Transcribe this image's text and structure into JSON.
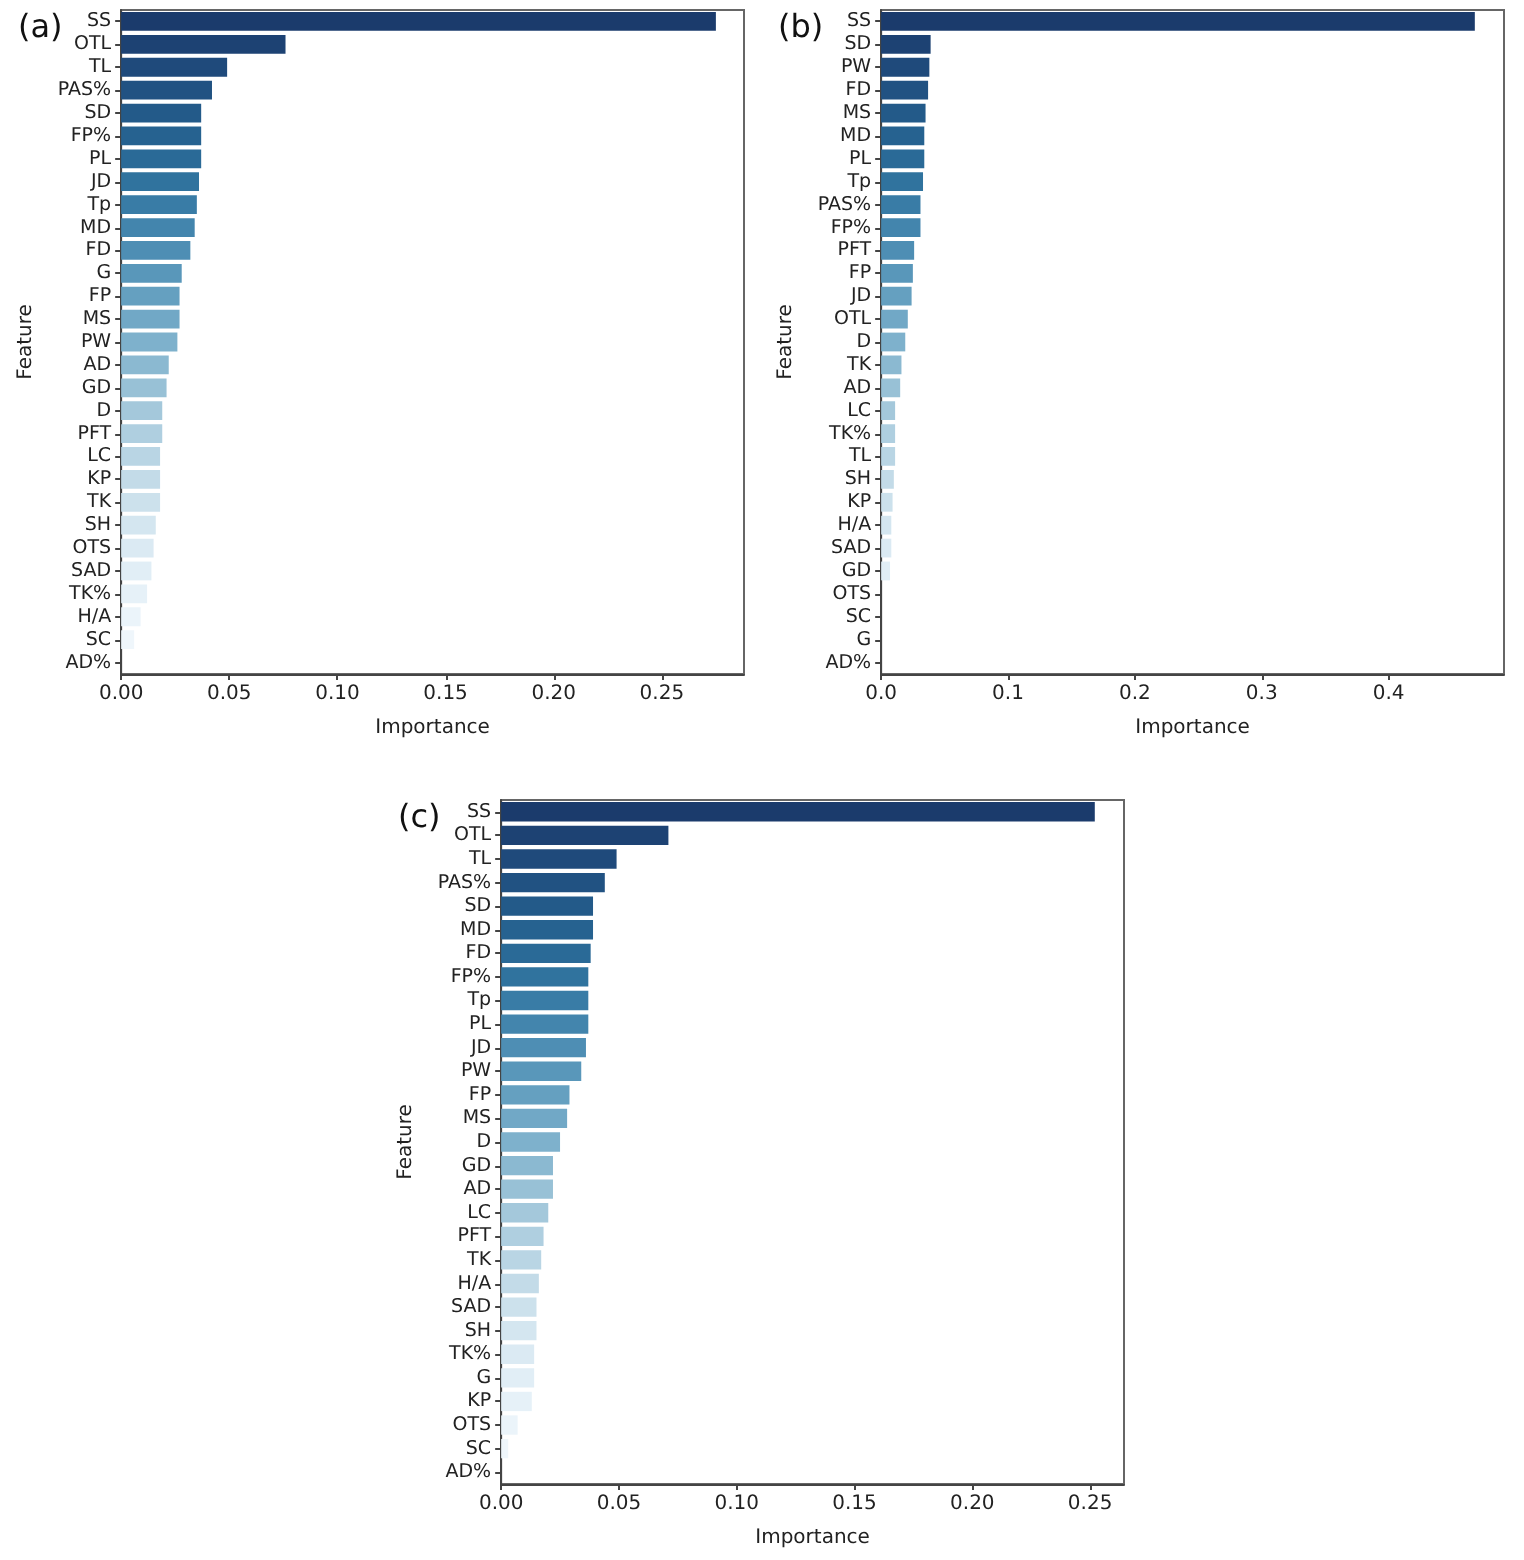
{
  "chart_data": [
    {
      "type": "bar",
      "orientation": "horizontal",
      "title": "(a)",
      "xlabel": "Importance",
      "ylabel": "Feature",
      "categories": [
        "SS",
        "OTL",
        "TL",
        "PAS%",
        "SD",
        "FP%",
        "PL",
        "JD",
        "Tp",
        "MD",
        "FD",
        "G",
        "FP",
        "MS",
        "PW",
        "AD",
        "GD",
        "D",
        "PFT",
        "LC",
        "KP",
        "TK",
        "SH",
        "OTS",
        "SAD",
        "TK%",
        "H/A",
        "SC",
        "AD%"
      ],
      "values": [
        0.275,
        0.076,
        0.049,
        0.042,
        0.037,
        0.037,
        0.037,
        0.036,
        0.035,
        0.034,
        0.032,
        0.028,
        0.027,
        0.027,
        0.026,
        0.022,
        0.021,
        0.019,
        0.019,
        0.018,
        0.018,
        0.018,
        0.016,
        0.015,
        0.014,
        0.012,
        0.009,
        0.006,
        0
      ],
      "colors": [
        "#1b3b6c",
        "#1d4273",
        "#1f4a7b",
        "#215282",
        "#235a89",
        "#266290",
        "#2a6a97",
        "#30739e",
        "#397ca6",
        "#4385ad",
        "#4e8eb4",
        "#5997ba",
        "#65a0c0",
        "#71a8c6",
        "#7eb1cc",
        "#8bb9d1",
        "#98c1d6",
        "#a4c8db",
        "#afcfe0",
        "#b9d5e4",
        "#c3dbe8",
        "#cce1ec",
        "#d4e6f0",
        "#dbeaf3",
        "#e1eef6",
        "#e6f1f8",
        "#ebf4fa",
        "#eff6fb",
        "#f3f8fc"
      ],
      "xlim": [
        0,
        0.288
      ],
      "xticks": [
        {
          "value": 0,
          "label": "0.00"
        },
        {
          "value": 0.05,
          "label": "0.05"
        },
        {
          "value": 0.1,
          "label": "0.10"
        },
        {
          "value": 0.15,
          "label": "0.15"
        },
        {
          "value": 0.2,
          "label": "0.20"
        },
        {
          "value": 0.25,
          "label": "0.25"
        }
      ]
    },
    {
      "type": "bar",
      "orientation": "horizontal",
      "title": "(b)",
      "xlabel": "Importance",
      "ylabel": "Feature",
      "categories": [
        "SS",
        "SD",
        "PW",
        "FD",
        "MS",
        "MD",
        "PL",
        "Tp",
        "PAS%",
        "FP%",
        "PFT",
        "FP",
        "JD",
        "OTL",
        "D",
        "TK",
        "AD",
        "LC",
        "TK%",
        "TL",
        "SH",
        "KP",
        "H/A",
        "SAD",
        "GD",
        "OTS",
        "SC",
        "G",
        "AD%"
      ],
      "values": [
        0.468,
        0.039,
        0.038,
        0.037,
        0.035,
        0.034,
        0.034,
        0.033,
        0.031,
        0.031,
        0.026,
        0.025,
        0.024,
        0.021,
        0.019,
        0.016,
        0.015,
        0.011,
        0.011,
        0.011,
        0.01,
        0.009,
        0.008,
        0.008,
        0.007,
        0,
        0,
        0,
        0
      ],
      "colors": [
        "#1b3b6c",
        "#1d4273",
        "#1f4a7b",
        "#215282",
        "#235a89",
        "#266290",
        "#2a6a97",
        "#30739e",
        "#397ca6",
        "#4385ad",
        "#4e8eb4",
        "#5997ba",
        "#65a0c0",
        "#71a8c6",
        "#7eb1cc",
        "#8bb9d1",
        "#98c1d6",
        "#a4c8db",
        "#afcfe0",
        "#b9d5e4",
        "#c3dbe8",
        "#cce1ec",
        "#d4e6f0",
        "#dbeaf3",
        "#e1eef6",
        "#e6f1f8",
        "#ebf4fa",
        "#eff6fb",
        "#f3f8fc"
      ],
      "xlim": [
        0,
        0.491
      ],
      "xticks": [
        {
          "value": 0,
          "label": "0.0"
        },
        {
          "value": 0.1,
          "label": "0.1"
        },
        {
          "value": 0.2,
          "label": "0.2"
        },
        {
          "value": 0.3,
          "label": "0.3"
        },
        {
          "value": 0.4,
          "label": "0.4"
        }
      ]
    },
    {
      "type": "bar",
      "orientation": "horizontal",
      "title": "(c)",
      "xlabel": "Importance",
      "ylabel": "Feature",
      "categories": [
        "SS",
        "OTL",
        "TL",
        "PAS%",
        "SD",
        "MD",
        "FD",
        "FP%",
        "Tp",
        "PL",
        "JD",
        "PW",
        "FP",
        "MS",
        "D",
        "GD",
        "AD",
        "LC",
        "PFT",
        "TK",
        "H/A",
        "SAD",
        "SH",
        "TK%",
        "G",
        "KP",
        "OTS",
        "SC",
        "AD%"
      ],
      "values": [
        0.252,
        0.071,
        0.049,
        0.044,
        0.039,
        0.039,
        0.038,
        0.037,
        0.037,
        0.037,
        0.036,
        0.034,
        0.029,
        0.028,
        0.025,
        0.022,
        0.022,
        0.02,
        0.018,
        0.017,
        0.016,
        0.015,
        0.015,
        0.014,
        0.014,
        0.013,
        0.007,
        0.003,
        0
      ],
      "colors": [
        "#1b3b6c",
        "#1d4273",
        "#1f4a7b",
        "#215282",
        "#235a89",
        "#266290",
        "#2a6a97",
        "#30739e",
        "#397ca6",
        "#4385ad",
        "#4e8eb4",
        "#5997ba",
        "#65a0c0",
        "#71a8c6",
        "#7eb1cc",
        "#8bb9d1",
        "#98c1d6",
        "#a4c8db",
        "#afcfe0",
        "#b9d5e4",
        "#c3dbe8",
        "#cce1ec",
        "#d4e6f0",
        "#dbeaf3",
        "#e1eef6",
        "#e6f1f8",
        "#ebf4fa",
        "#eff6fb",
        "#f3f8fc"
      ],
      "xlim": [
        0,
        0.2644
      ],
      "xticks": [
        {
          "value": 0,
          "label": "0.00"
        },
        {
          "value": 0.05,
          "label": "0.05"
        },
        {
          "value": 0.1,
          "label": "0.10"
        },
        {
          "value": 0.15,
          "label": "0.15"
        },
        {
          "value": 0.2,
          "label": "0.20"
        },
        {
          "value": 0.25,
          "label": "0.25"
        }
      ]
    }
  ]
}
